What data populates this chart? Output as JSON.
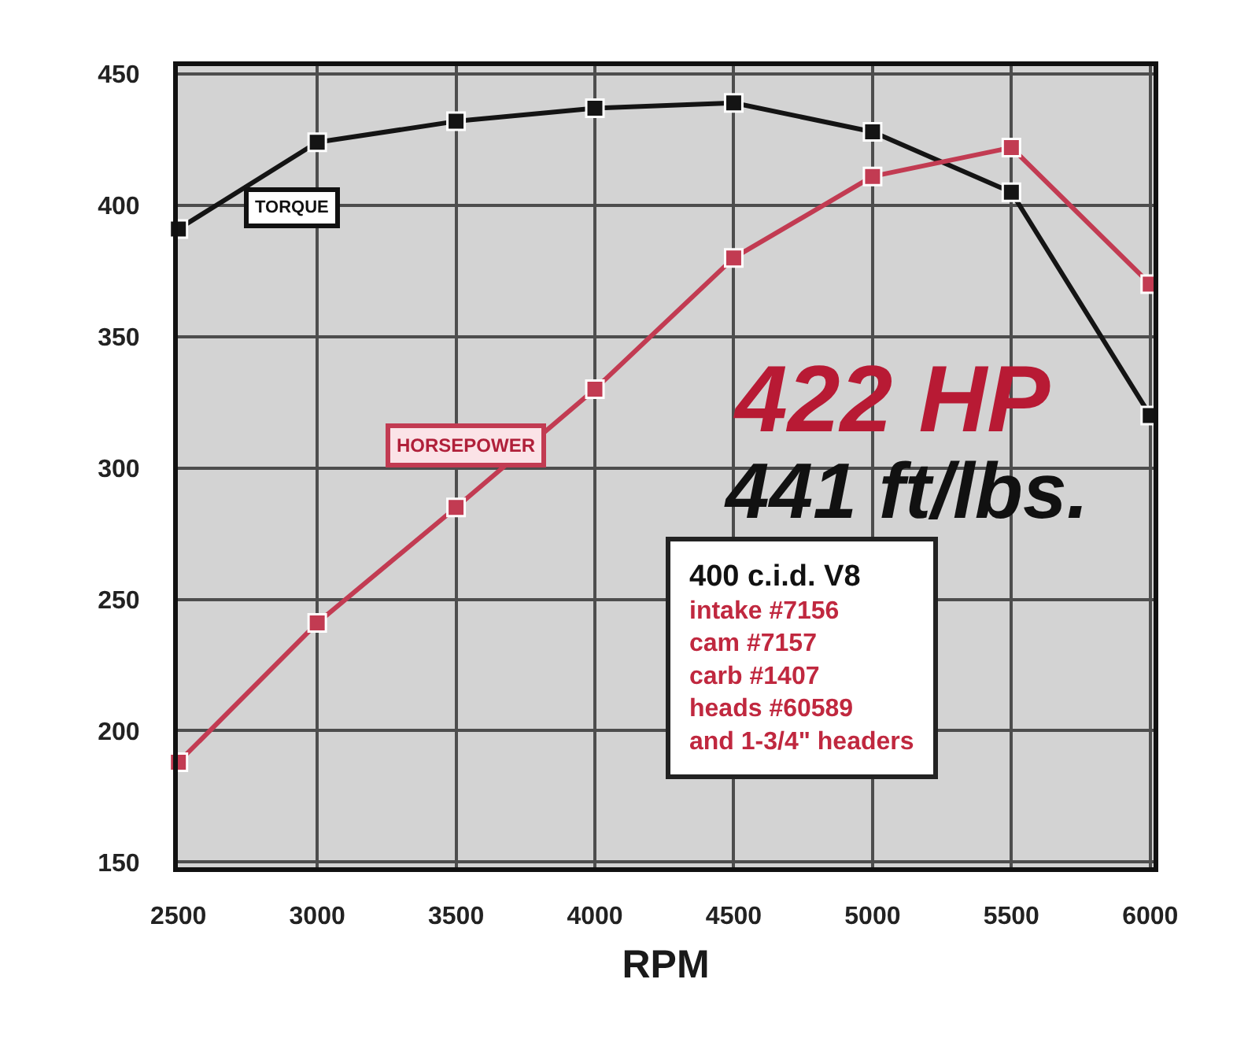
{
  "chart_data": {
    "type": "line",
    "x": [
      2500,
      3000,
      3500,
      4000,
      4500,
      5000,
      5500,
      6000
    ],
    "series": [
      {
        "name": "TORQUE",
        "color": "#141414",
        "values": [
          391,
          424,
          432,
          437,
          439,
          428,
          405,
          320
        ]
      },
      {
        "name": "HORSEPOWER",
        "color": "#c23b52",
        "values": [
          188,
          241,
          285,
          330,
          380,
          411,
          422,
          370
        ]
      }
    ],
    "xlabel": "RPM",
    "xlim": [
      2498,
      6012
    ],
    "xticks": [
      2500,
      3000,
      3500,
      4000,
      4500,
      5000,
      5500,
      6000
    ],
    "ylim": [
      148,
      453
    ],
    "yticks": [
      150,
      200,
      250,
      300,
      350,
      400,
      450
    ],
    "grid": true,
    "legend": false,
    "marker": "square",
    "line_style": "solid",
    "annotations": [
      "422 HP",
      "441 ft/lbs.",
      "400 c.i.d. V8",
      "intake #7156",
      "cam #7157",
      "carb #1407",
      "heads #60589",
      "and 1-3/4\" headers"
    ]
  }
}
